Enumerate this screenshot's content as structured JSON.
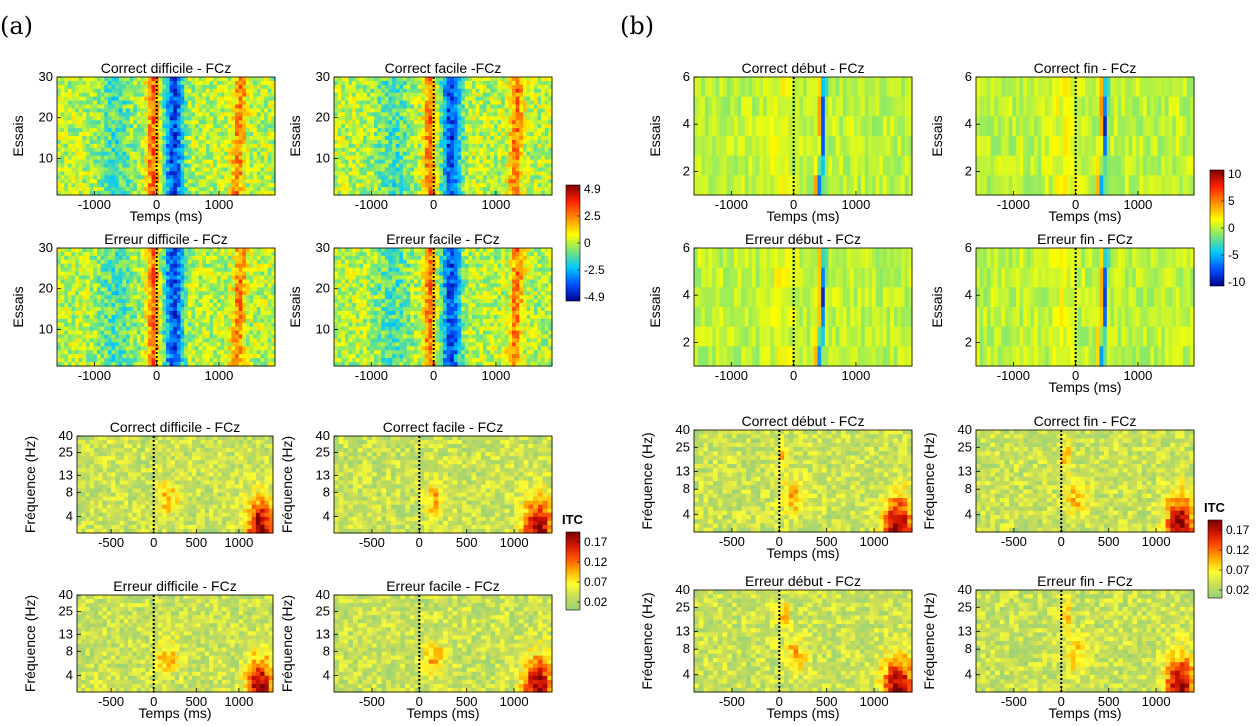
{
  "panel_labels": [
    "(a)",
    "(b)"
  ],
  "colors": {
    "jet": [
      "#00008f",
      "#0050ff",
      "#00c8ff",
      "#78e678",
      "#ffff00",
      "#ff9000",
      "#ff2000",
      "#800000"
    ],
    "itc": [
      "#96d27a",
      "#c8dc5a",
      "#ffff30",
      "#ffb000",
      "#ff5000",
      "#d21400",
      "#780000"
    ]
  },
  "chart_data": [
    {
      "id": "a-trials-correct-difficile",
      "type": "heatmap",
      "title": "Correct difficile - FCz",
      "xlabel": "Temps (ms)",
      "ylabel": "Essais",
      "xticks": [
        -1000,
        0,
        1000
      ],
      "yticks": [
        10,
        20,
        30
      ],
      "xlim": [
        -1600,
        1900
      ],
      "ylim": [
        1,
        30
      ],
      "clim": [
        -4.9,
        4.9
      ],
      "event_line_x": 0,
      "show_xlabel": true,
      "show_ylabel": true
    },
    {
      "id": "a-trials-correct-facile",
      "type": "heatmap",
      "title": "Correct facile -FCz",
      "xlabel": "Temps (ms)",
      "ylabel": "Essais",
      "xticks": [
        -1000,
        0,
        1000
      ],
      "yticks": [
        10,
        20,
        30
      ],
      "xlim": [
        -1600,
        1900
      ],
      "ylim": [
        1,
        30
      ],
      "clim": [
        -4.9,
        4.9
      ],
      "event_line_x": 0,
      "show_xlabel": false,
      "show_ylabel": true
    },
    {
      "id": "a-trials-erreur-difficile",
      "type": "heatmap",
      "title": "Erreur difficile - FCz",
      "xlabel": "Temps (ms)",
      "ylabel": "Essais",
      "xticks": [
        -1000,
        0,
        1000
      ],
      "yticks": [
        10,
        20,
        30
      ],
      "xlim": [
        -1600,
        1900
      ],
      "ylim": [
        1,
        30
      ],
      "clim": [
        -4.9,
        4.9
      ],
      "event_line_x": 0,
      "show_xlabel": false,
      "show_ylabel": true
    },
    {
      "id": "a-trials-erreur-facile",
      "type": "heatmap",
      "title": "Erreur facile - FCz",
      "xlabel": "Temps (ms)",
      "ylabel": "Essais",
      "xticks": [
        -1000,
        0,
        1000
      ],
      "yticks": [
        10,
        20,
        30
      ],
      "xlim": [
        -1600,
        1900
      ],
      "ylim": [
        1,
        30
      ],
      "clim": [
        -4.9,
        4.9
      ],
      "event_line_x": 0,
      "show_xlabel": false,
      "show_ylabel": true
    },
    {
      "id": "a-itc-correct-difficile",
      "type": "heatmap",
      "title": "Correct difficile - FCz",
      "xlabel": "Temps (ms)",
      "ylabel": "Fréquence (Hz)",
      "xticks": [
        -500,
        0,
        500,
        1000
      ],
      "yticks": [
        4,
        8,
        13,
        25,
        40
      ],
      "xlim": [
        -900,
        1400
      ],
      "ylim": [
        2.5,
        40
      ],
      "clim": [
        0.02,
        0.17
      ],
      "event_line_x": 0,
      "show_xlabel": false,
      "show_ylabel": true
    },
    {
      "id": "a-itc-correct-facile",
      "type": "heatmap",
      "title": "Correct facile - FCz",
      "xlabel": "Temps (ms)",
      "ylabel": "Fréquence (Hz)",
      "xticks": [
        -500,
        0,
        500,
        1000
      ],
      "yticks": [
        4,
        8,
        13,
        25,
        40
      ],
      "xlim": [
        -900,
        1400
      ],
      "ylim": [
        2.5,
        40
      ],
      "clim": [
        0.02,
        0.17
      ],
      "event_line_x": 0,
      "show_xlabel": false,
      "show_ylabel": true
    },
    {
      "id": "a-itc-erreur-difficile",
      "type": "heatmap",
      "title": "Erreur difficile - FCz",
      "xlabel": "Temps (ms)",
      "ylabel": "Fréquence (Hz)",
      "xticks": [
        -500,
        0,
        500,
        1000
      ],
      "yticks": [
        4,
        8,
        13,
        25,
        40
      ],
      "xlim": [
        -900,
        1400
      ],
      "ylim": [
        2.5,
        40
      ],
      "clim": [
        0.02,
        0.17
      ],
      "event_line_x": 0,
      "show_xlabel": true,
      "show_ylabel": true
    },
    {
      "id": "a-itc-erreur-facile",
      "type": "heatmap",
      "title": "Erreur facile - FCz",
      "xlabel": "Temps (ms)",
      "ylabel": "Fréquence (Hz)",
      "xticks": [
        -500,
        0,
        500,
        1000
      ],
      "yticks": [
        4,
        8,
        13,
        25,
        40
      ],
      "xlim": [
        -900,
        1400
      ],
      "ylim": [
        2.5,
        40
      ],
      "clim": [
        0.02,
        0.17
      ],
      "event_line_x": 0,
      "show_xlabel": true,
      "show_ylabel": true
    },
    {
      "id": "b-trials-correct-debut",
      "type": "heatmap",
      "title": "Correct début - FCz",
      "xlabel": "Temps (ms)",
      "ylabel": "Essais",
      "xticks": [
        -1000,
        0,
        1000
      ],
      "yticks": [
        2,
        4,
        6
      ],
      "xlim": [
        -1600,
        1900
      ],
      "ylim": [
        1,
        6
      ],
      "clim": [
        -10,
        10
      ],
      "event_line_x": 0,
      "show_xlabel": true,
      "show_ylabel": true
    },
    {
      "id": "b-trials-correct-fin",
      "type": "heatmap",
      "title": "Correct fin - FCz",
      "xlabel": "Temps (ms)",
      "ylabel": "Essais",
      "xticks": [
        -1000,
        0,
        1000
      ],
      "yticks": [
        2,
        4,
        6
      ],
      "xlim": [
        -1600,
        1900
      ],
      "ylim": [
        1,
        6
      ],
      "clim": [
        -10,
        10
      ],
      "event_line_x": 0,
      "show_xlabel": true,
      "show_ylabel": true
    },
    {
      "id": "b-trials-erreur-debut",
      "type": "heatmap",
      "title": "Erreur début - FCz",
      "xlabel": "Temps (ms)",
      "ylabel": "Essais",
      "xticks": [
        -1000,
        0,
        1000
      ],
      "yticks": [
        2,
        4,
        6
      ],
      "xlim": [
        -1600,
        1900
      ],
      "ylim": [
        1,
        6
      ],
      "clim": [
        -10,
        10
      ],
      "event_line_x": 0,
      "show_xlabel": false,
      "show_ylabel": true
    },
    {
      "id": "b-trials-erreur-fin",
      "type": "heatmap",
      "title": "Erreur fin - FCz",
      "xlabel": "Temps (ms)",
      "ylabel": "Essais",
      "xticks": [
        -1000,
        0,
        1000
      ],
      "yticks": [
        2,
        4,
        6
      ],
      "xlim": [
        -1600,
        1900
      ],
      "ylim": [
        1,
        6
      ],
      "clim": [
        -10,
        10
      ],
      "event_line_x": 0,
      "show_xlabel": true,
      "show_ylabel": true
    },
    {
      "id": "b-itc-correct-debut",
      "type": "heatmap",
      "title": "Correct début - FCz",
      "xlabel": "Temps (ms)",
      "ylabel": "Fréquence (Hz)",
      "xticks": [
        -500,
        0,
        500,
        1000
      ],
      "yticks": [
        4,
        8,
        13,
        25,
        40
      ],
      "xlim": [
        -900,
        1400
      ],
      "ylim": [
        2.5,
        40
      ],
      "clim": [
        0.02,
        0.17
      ],
      "event_line_x": 0,
      "show_xlabel": true,
      "show_ylabel": true
    },
    {
      "id": "b-itc-correct-fin",
      "type": "heatmap",
      "title": "Correct fin - FCz",
      "xlabel": "Temps (ms)",
      "ylabel": "Fréquence (Hz)",
      "xticks": [
        -500,
        0,
        500,
        1000
      ],
      "yticks": [
        4,
        8,
        13,
        25,
        40
      ],
      "xlim": [
        -900,
        1400
      ],
      "ylim": [
        2.5,
        40
      ],
      "clim": [
        0.02,
        0.17
      ],
      "event_line_x": 0,
      "show_xlabel": false,
      "show_ylabel": true
    },
    {
      "id": "b-itc-erreur-debut",
      "type": "heatmap",
      "title": "Erreur début - FCz",
      "xlabel": "Temps (ms)",
      "ylabel": "Fréquence (Hz)",
      "xticks": [
        -500,
        0,
        500,
        1000
      ],
      "yticks": [
        4,
        8,
        13,
        25,
        40
      ],
      "xlim": [
        -900,
        1400
      ],
      "ylim": [
        2.5,
        40
      ],
      "clim": [
        0.02,
        0.17
      ],
      "event_line_x": 0,
      "show_xlabel": true,
      "show_ylabel": true
    },
    {
      "id": "b-itc-erreur-fin",
      "type": "heatmap",
      "title": "Erreur fin - FCz",
      "xlabel": "Temps (ms)",
      "ylabel": "Fréquence (Hz)",
      "xticks": [
        -500,
        0,
        500,
        1000
      ],
      "yticks": [
        4,
        8,
        13,
        25,
        40
      ],
      "xlim": [
        -900,
        1400
      ],
      "ylim": [
        2.5,
        40
      ],
      "clim": [
        0.02,
        0.17
      ],
      "event_line_x": 0,
      "show_xlabel": true,
      "show_ylabel": true
    }
  ],
  "colorbars": [
    {
      "id": "a-trials-colorbar",
      "ticks": [
        "4.9",
        "2.5",
        "0",
        "-2.5",
        "-4.9"
      ],
      "title": ""
    },
    {
      "id": "b-trials-colorbar",
      "ticks": [
        "10",
        "5",
        "0",
        "-5",
        "-10"
      ],
      "title": ""
    },
    {
      "id": "a-itc-colorbar",
      "ticks": [
        "0.17",
        "0.12",
        "0.07",
        "0.02"
      ],
      "title": "ITC"
    },
    {
      "id": "b-itc-colorbar",
      "ticks": [
        "0.17",
        "0.12",
        "0.07",
        "0.02"
      ],
      "title": "ITC"
    }
  ]
}
